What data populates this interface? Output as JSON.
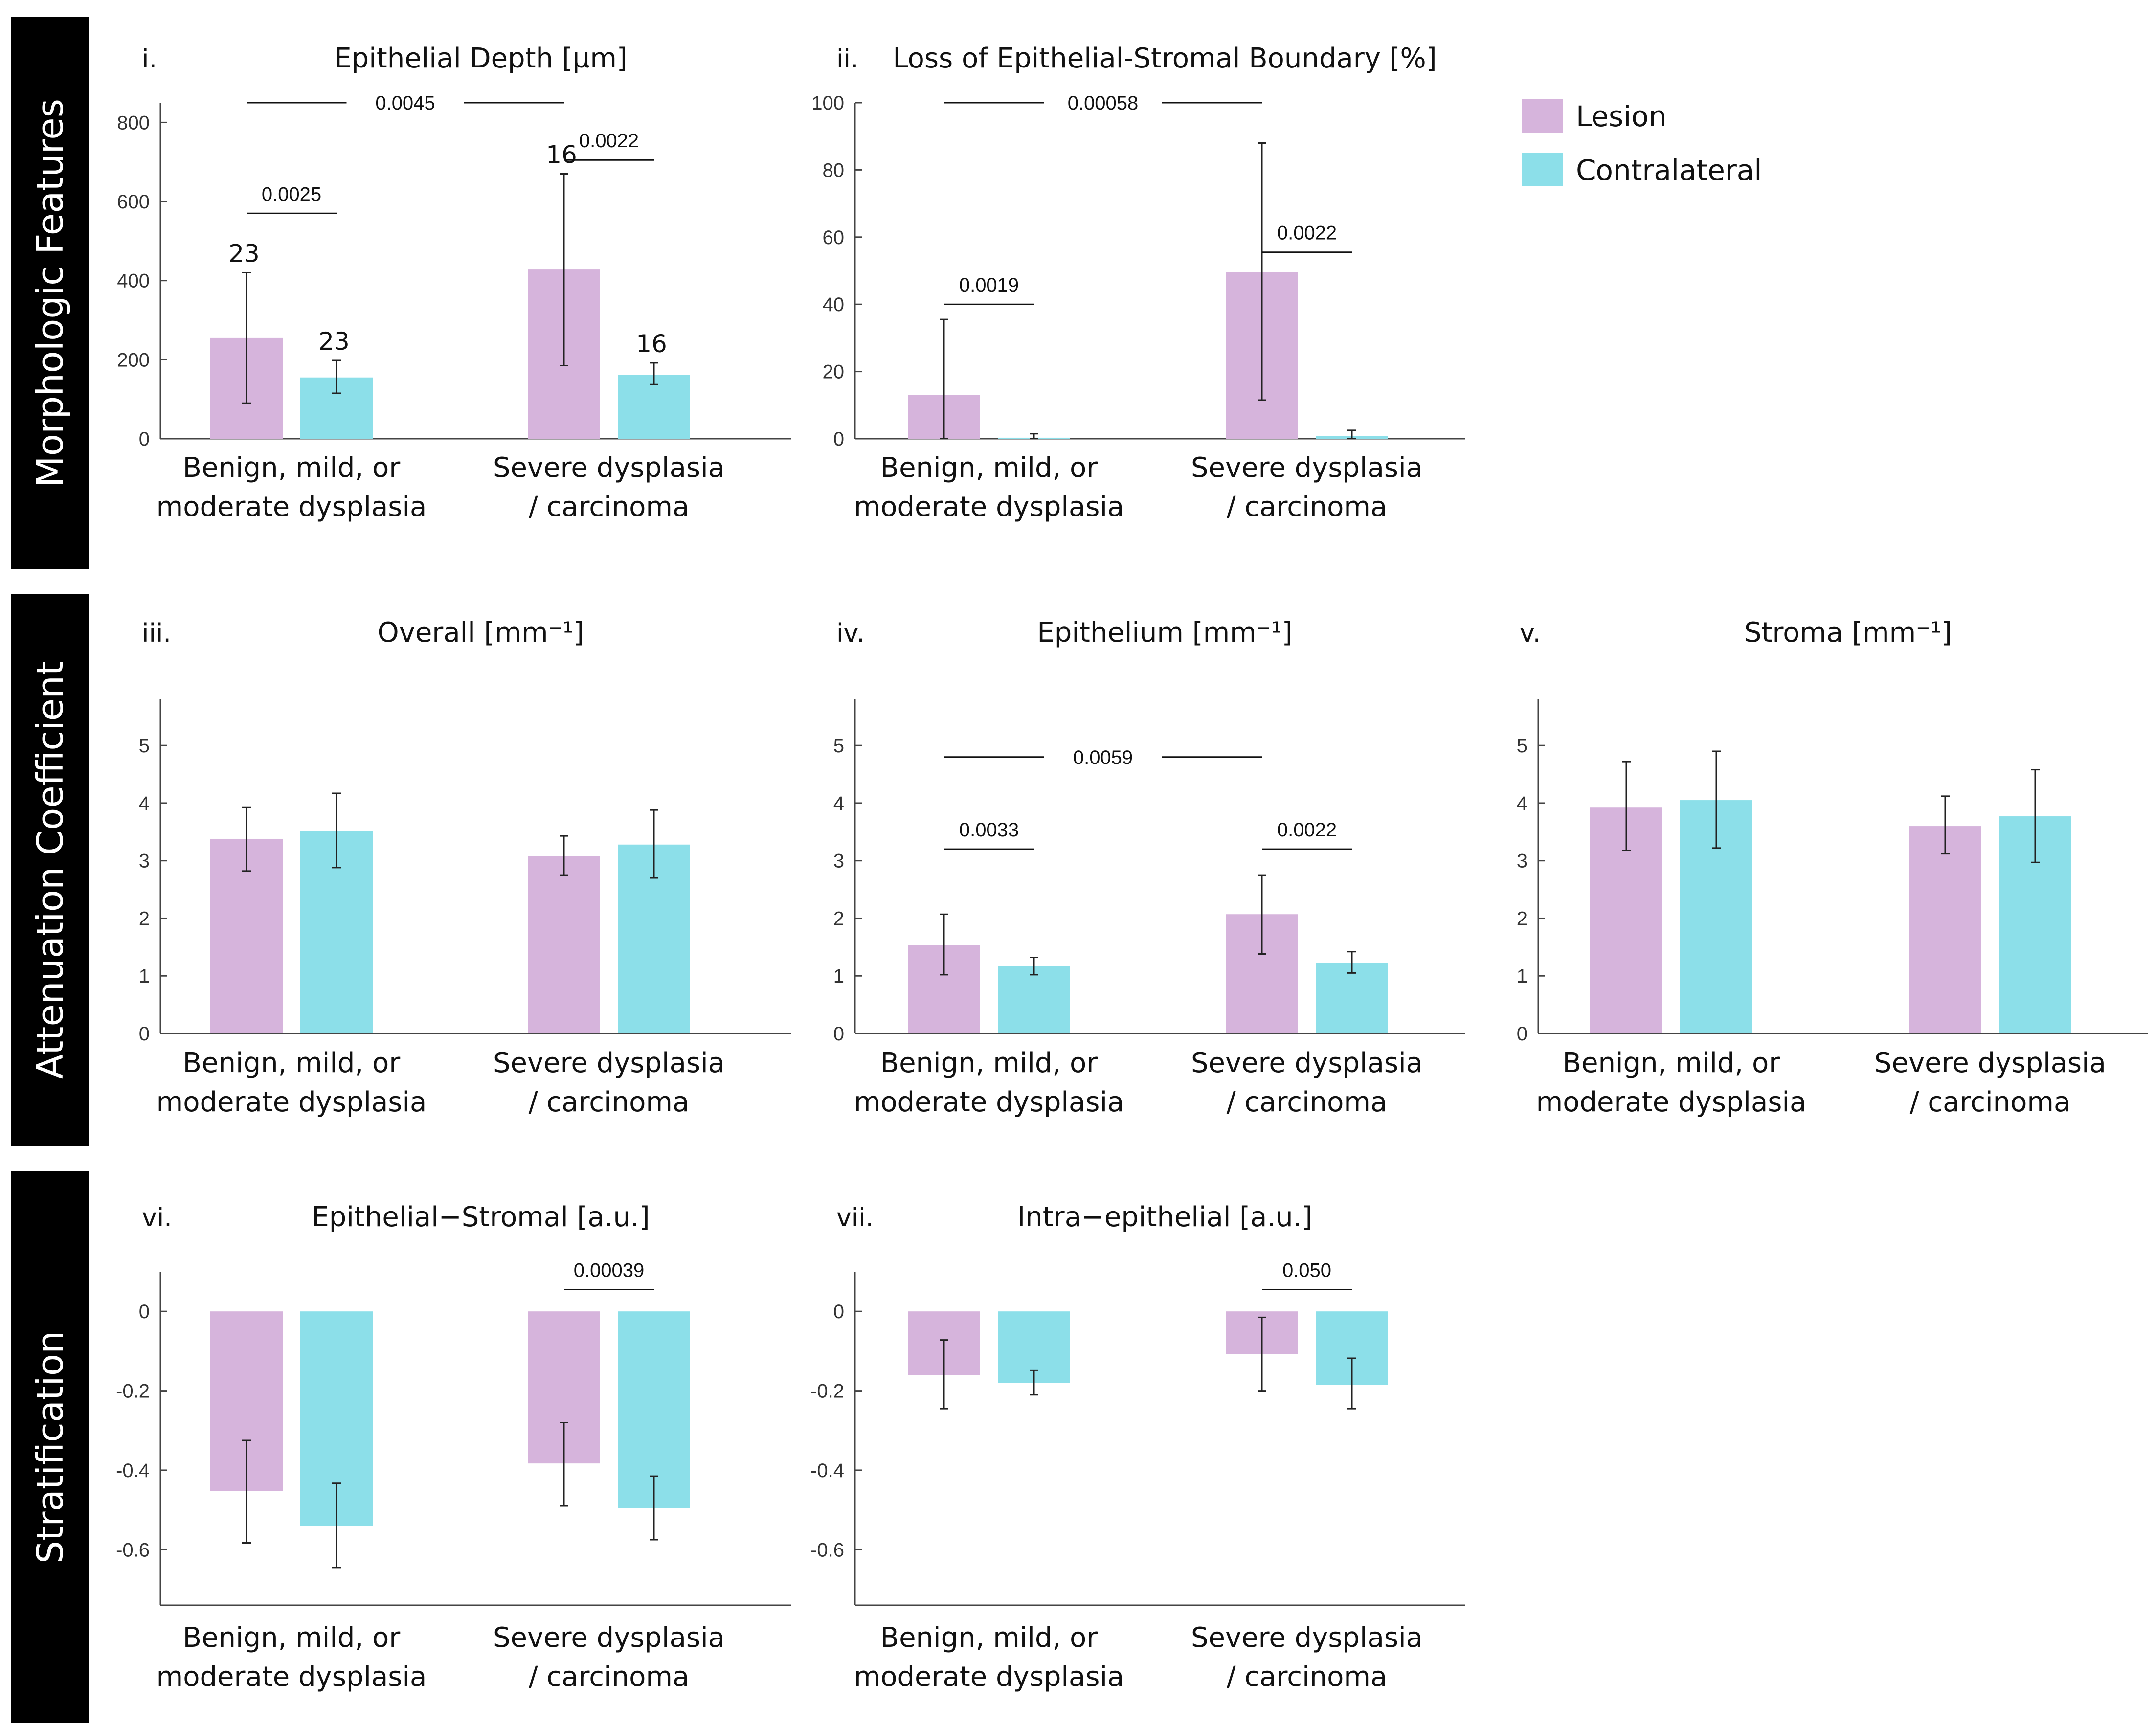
{
  "legend": {
    "lesion_label": "Lesion",
    "contralateral_label": "Contralateral",
    "lesion_color": "#d6b4dc",
    "contralateral_color": "#8cdfe9"
  },
  "row_labels": [
    "Morphologic Features",
    "Attenuation Coefficient",
    "Stratification"
  ],
  "categories": [
    [
      "Benign, mild, or",
      "moderate dysplasia"
    ],
    [
      "Severe dysplasia",
      "/ carcinoma"
    ]
  ],
  "chart_data": [
    {
      "type": "bar",
      "panel": "i.",
      "title": "Epithelial Depth [µm]",
      "ylim": [
        0,
        850
      ],
      "yticks": [
        0,
        200,
        400,
        600,
        800
      ],
      "ytick_labels": [
        "0",
        "200",
        "400",
        "600",
        "800"
      ],
      "series": [
        {
          "name": "Lesion",
          "values": [
            255,
            428
          ],
          "err_low": [
            90,
            185
          ],
          "err_high": [
            420,
            670
          ],
          "n_labels": [
            "23",
            "16"
          ]
        },
        {
          "name": "Contralateral",
          "values": [
            155,
            162
          ],
          "err_low": [
            115,
            137
          ],
          "err_high": [
            198,
            192
          ],
          "n_labels": [
            "23",
            "16"
          ]
        }
      ],
      "brackets": [
        {
          "from": [
            0,
            0
          ],
          "to": [
            1,
            0
          ],
          "label": "0.0045",
          "y": 850,
          "style": "across"
        },
        {
          "from": [
            0,
            0
          ],
          "to": [
            0,
            1
          ],
          "label": "0.0025",
          "y": 570,
          "style": "pair"
        },
        {
          "from": [
            1,
            0
          ],
          "to": [
            1,
            1
          ],
          "label": "0.0022",
          "y": 705,
          "style": "pair"
        }
      ]
    },
    {
      "type": "bar",
      "panel": "ii.",
      "title": "Loss of Epithelial-Stromal Boundary [%]",
      "ylim": [
        0,
        100
      ],
      "yticks": [
        0,
        20,
        40,
        60,
        80,
        100
      ],
      "ytick_labels": [
        "0",
        "20",
        "40",
        "60",
        "80",
        "100"
      ],
      "series": [
        {
          "name": "Lesion",
          "values": [
            13,
            49.5
          ],
          "err_low": [
            0,
            11.5
          ],
          "err_high": [
            35.5,
            88
          ]
        },
        {
          "name": "Contralateral",
          "values": [
            0.3,
            0.8
          ],
          "err_low": [
            0,
            0
          ],
          "err_high": [
            1.5,
            2.5
          ]
        }
      ],
      "brackets": [
        {
          "from": [
            0,
            0
          ],
          "to": [
            1,
            0
          ],
          "label": "0.00058",
          "y": 100,
          "style": "across"
        },
        {
          "from": [
            0,
            0
          ],
          "to": [
            0,
            1
          ],
          "label": "0.0019",
          "y": 40,
          "style": "pair"
        },
        {
          "from": [
            1,
            0
          ],
          "to": [
            1,
            1
          ],
          "label": "0.0022",
          "y": 55.5,
          "style": "pair"
        }
      ]
    },
    {
      "type": "bar",
      "panel": "iii.",
      "title": "Overall [mm⁻¹]",
      "ylim": [
        0,
        5.8
      ],
      "yticks": [
        0,
        1,
        2,
        3,
        4,
        5
      ],
      "ytick_labels": [
        "0",
        "1",
        "2",
        "3",
        "4",
        "5"
      ],
      "series": [
        {
          "name": "Lesion",
          "values": [
            3.38,
            3.08
          ],
          "err_low": [
            2.82,
            2.75
          ],
          "err_high": [
            3.93,
            3.43
          ]
        },
        {
          "name": "Contralateral",
          "values": [
            3.52,
            3.28
          ],
          "err_low": [
            2.88,
            2.7
          ],
          "err_high": [
            4.17,
            3.88
          ]
        }
      ],
      "brackets": []
    },
    {
      "type": "bar",
      "panel": "iv.",
      "title": "Epithelium [mm⁻¹]",
      "ylim": [
        0,
        5.8
      ],
      "yticks": [
        0,
        1,
        2,
        3,
        4,
        5
      ],
      "ytick_labels": [
        "0",
        "1",
        "2",
        "3",
        "4",
        "5"
      ],
      "series": [
        {
          "name": "Lesion",
          "values": [
            1.53,
            2.07
          ],
          "err_low": [
            1.02,
            1.38
          ],
          "err_high": [
            2.07,
            2.75
          ]
        },
        {
          "name": "Contralateral",
          "values": [
            1.17,
            1.23
          ],
          "err_low": [
            1.02,
            1.05
          ],
          "err_high": [
            1.32,
            1.42
          ]
        }
      ],
      "brackets": [
        {
          "from": [
            0,
            0
          ],
          "to": [
            1,
            0
          ],
          "label": "0.0059",
          "y": 4.8,
          "style": "across"
        },
        {
          "from": [
            0,
            0
          ],
          "to": [
            0,
            1
          ],
          "label": "0.0033",
          "y": 3.2,
          "style": "pair"
        },
        {
          "from": [
            1,
            0
          ],
          "to": [
            1,
            1
          ],
          "label": "0.0022",
          "y": 3.2,
          "style": "pair"
        }
      ]
    },
    {
      "type": "bar",
      "panel": "v.",
      "title": "Stroma [mm⁻¹]",
      "ylim": [
        0,
        5.8
      ],
      "yticks": [
        0,
        1,
        2,
        3,
        4,
        5
      ],
      "ytick_labels": [
        "0",
        "1",
        "2",
        "3",
        "4",
        "5"
      ],
      "series": [
        {
          "name": "Lesion",
          "values": [
            3.93,
            3.6
          ],
          "err_low": [
            3.18,
            3.12
          ],
          "err_high": [
            4.72,
            4.12
          ]
        },
        {
          "name": "Contralateral",
          "values": [
            4.05,
            3.77
          ],
          "err_low": [
            3.22,
            2.97
          ],
          "err_high": [
            4.9,
            4.58
          ]
        }
      ],
      "brackets": []
    },
    {
      "type": "bar",
      "panel": "vi.",
      "title": "Epithelial−Stromal [a.u.]",
      "ylim": [
        -0.74,
        0.1
      ],
      "yticks": [
        0,
        -0.2,
        -0.4,
        -0.6
      ],
      "ytick_labels": [
        "0",
        "-0.2",
        "-0.4",
        "-0.6"
      ],
      "series": [
        {
          "name": "Lesion",
          "values": [
            -0.452,
            -0.383
          ],
          "err_low": [
            -0.583,
            -0.49
          ],
          "err_high": [
            -0.325,
            -0.28
          ]
        },
        {
          "name": "Contralateral",
          "values": [
            -0.54,
            -0.495
          ],
          "err_low": [
            -0.645,
            -0.575
          ],
          "err_high": [
            -0.433,
            -0.415
          ]
        }
      ],
      "brackets": [
        {
          "from": [
            1,
            0
          ],
          "to": [
            1,
            1
          ],
          "label": "0.00039",
          "y": 0.055,
          "style": "pair"
        }
      ]
    },
    {
      "type": "bar",
      "panel": "vii.",
      "title": "Intra−epithelial [a.u.]",
      "ylim": [
        -0.74,
        0.1
      ],
      "yticks": [
        0,
        -0.2,
        -0.4,
        -0.6
      ],
      "ytick_labels": [
        "0",
        "-0.2",
        "-0.4",
        "-0.6"
      ],
      "series": [
        {
          "name": "Lesion",
          "values": [
            -0.16,
            -0.108
          ],
          "err_low": [
            -0.245,
            -0.2
          ],
          "err_high": [
            -0.072,
            -0.015
          ]
        },
        {
          "name": "Contralateral",
          "values": [
            -0.18,
            -0.185
          ],
          "err_low": [
            -0.21,
            -0.245
          ],
          "err_high": [
            -0.148,
            -0.118
          ]
        }
      ],
      "brackets": [
        {
          "from": [
            1,
            0
          ],
          "to": [
            1,
            1
          ],
          "label": "0.050",
          "y": 0.055,
          "style": "pair"
        }
      ]
    }
  ]
}
